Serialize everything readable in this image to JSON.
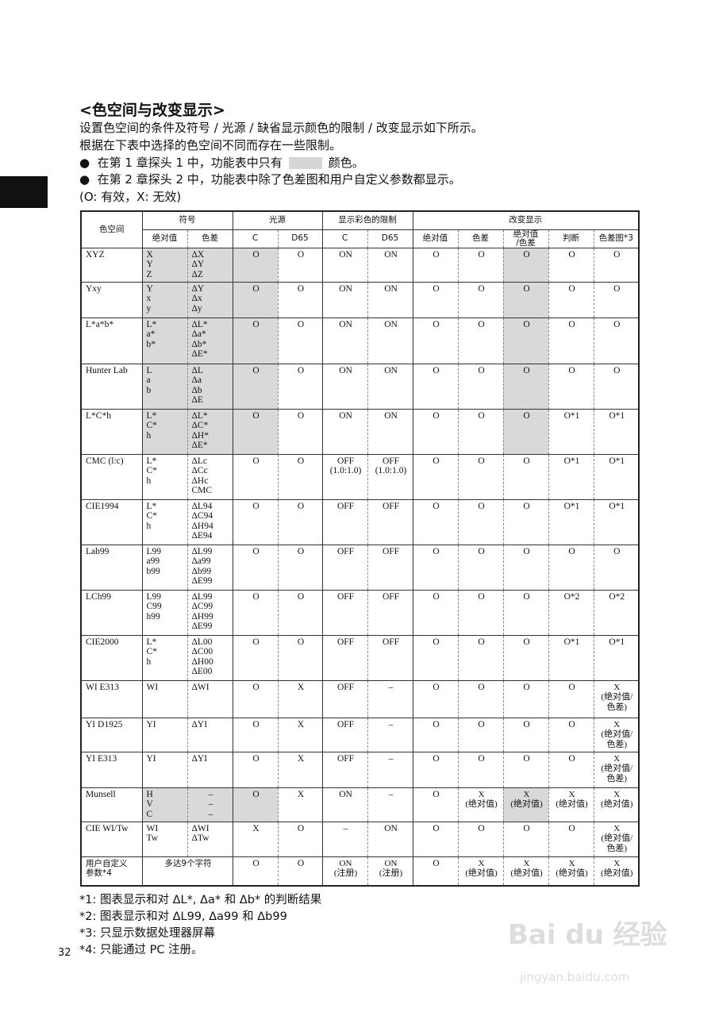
{
  "title": "<色空间与改变显示>",
  "intro": [
    "设置色空间的条件及符号 / 光源 / 缺省显示颜色的限制 / 改变显示如下所示。",
    "根据在下表中选择的色空间不同而存在一些限制。"
  ],
  "bullets": [
    {
      "before": "在第 1 章探头 1 中，功能表中只有",
      "after": "颜色。"
    },
    {
      "before": "在第 2 章探头 2 中，功能表中除了色差图和用户自定义参数都显示。",
      "after": ""
    }
  ],
  "legend_note": "(O: 有效，X: 无效)",
  "highlight_color": "#d9d9d9",
  "table": {
    "group_headers": {
      "space": "色空间",
      "symbol": "符号",
      "illuminant": "光源",
      "limit": "显示彩色的限制",
      "change": "改变显示"
    },
    "sub_headers": [
      "绝对值",
      "色差",
      "C",
      "D65",
      "C",
      "D65",
      "绝对值",
      "色差",
      "绝对值\n/色差",
      "判断",
      "色差图*3"
    ],
    "rows": [
      {
        "name": "XYZ",
        "cells": [
          "X\nY\nZ",
          "ΔX\nΔY\nΔZ",
          "O",
          "O",
          "ON",
          "ON",
          "O",
          "O",
          "O",
          "O",
          "O"
        ],
        "shade": [
          0,
          1,
          2,
          8
        ]
      },
      {
        "name": "Yxy",
        "cells": [
          "Y\nx\ny",
          "ΔY\nΔx\nΔy",
          "O",
          "O",
          "ON",
          "ON",
          "O",
          "O",
          "O",
          "O",
          "O"
        ],
        "shade": [
          0,
          1,
          2,
          8
        ]
      },
      {
        "name": "L*a*b*",
        "cells": [
          "L*\na*\nb*",
          "ΔL*\nΔa*\nΔb*\nΔE*",
          "O",
          "O",
          "ON",
          "ON",
          "O",
          "O",
          "O",
          "O",
          "O"
        ],
        "shade": [
          0,
          1,
          2,
          8
        ]
      },
      {
        "name": "Hunter Lab",
        "cells": [
          "L\na\nb",
          "ΔL\nΔa\nΔb\nΔE",
          "O",
          "O",
          "ON",
          "ON",
          "O",
          "O",
          "O",
          "O",
          "O"
        ],
        "shade": [
          0,
          1,
          2,
          8
        ]
      },
      {
        "name": "L*C*h",
        "cells": [
          "L*\nC*\nh",
          "ΔL*\nΔC*\nΔH*\nΔE*",
          "O",
          "O",
          "ON",
          "ON",
          "O",
          "O",
          "O",
          "O*1",
          "O*1"
        ],
        "shade": [
          0,
          1,
          2,
          8
        ]
      },
      {
        "name": "CMC (l:c)",
        "cells": [
          "L*\nC*\nh",
          "ΔLc\nΔCc\nΔHc\nCMC",
          "O",
          "O",
          "OFF\n(1.0:1.0)",
          "OFF\n(1.0:1.0)",
          "O",
          "O",
          "O",
          "O*1",
          "O*1"
        ],
        "shade": []
      },
      {
        "name": "CIE1994",
        "cells": [
          "L*\nC*\nh",
          "ΔL94\nΔC94\nΔH94\nΔE94",
          "O",
          "O",
          "OFF",
          "OFF",
          "O",
          "O",
          "O",
          "O*1",
          "O*1"
        ],
        "shade": []
      },
      {
        "name": "Lab99",
        "cells": [
          "L99\na99\nb99",
          "ΔL99\nΔa99\nΔb99\nΔE99",
          "O",
          "O",
          "OFF",
          "OFF",
          "O",
          "O",
          "O",
          "O",
          "O"
        ],
        "shade": []
      },
      {
        "name": "LCh99",
        "cells": [
          "L99\nC99\nh99",
          "ΔL99\nΔC99\nΔH99\nΔE99",
          "O",
          "O",
          "OFF",
          "OFF",
          "O",
          "O",
          "O",
          "O*2",
          "O*2"
        ],
        "shade": []
      },
      {
        "name": "CIE2000",
        "cells": [
          "L*\nC*\nh",
          "ΔL00\nΔC00\nΔH00\nΔE00",
          "O",
          "O",
          "OFF",
          "OFF",
          "O",
          "O",
          "O",
          "O*1",
          "O*1"
        ],
        "shade": []
      },
      {
        "name": "WI E313",
        "cells": [
          "WI",
          "ΔWI",
          "O",
          "X",
          "OFF",
          "–",
          "O",
          "O",
          "O",
          "O",
          "X\n(绝对值/\n色差)"
        ],
        "shade": []
      },
      {
        "name": "YI D1925",
        "cells": [
          "YI",
          "ΔYI",
          "O",
          "X",
          "OFF",
          "–",
          "O",
          "O",
          "O",
          "O",
          "X\n(绝对值/\n色差)"
        ],
        "shade": []
      },
      {
        "name": "YI E313",
        "cells": [
          "YI",
          "ΔYI",
          "O",
          "X",
          "OFF",
          "–",
          "O",
          "O",
          "O",
          "O",
          "X\n(绝对值/\n色差)"
        ],
        "shade": []
      },
      {
        "name": "Munsell",
        "cells": [
          "H\nV\nC",
          "–\n–\n–",
          "O",
          "X",
          "ON",
          "–",
          "O",
          "X\n(绝对值)",
          "X\n(绝对值)",
          "X\n(绝对值)",
          "X\n(绝对值)"
        ],
        "shade": [
          0,
          1,
          2,
          8
        ]
      },
      {
        "name": "CIE WI/Tw",
        "cells": [
          "WI\nTw",
          "ΔWI\nΔTw",
          "X",
          "O",
          "–",
          "ON",
          "O",
          "O",
          "O",
          "O",
          "X\n(绝对值/\n色差)"
        ],
        "shade": []
      },
      {
        "name": "用户自定义\n参数*4",
        "symbol_merged": "多达9个字符",
        "cells": [
          "O",
          "O",
          "ON\n(注册)",
          "ON\n(注册)",
          "O",
          "X\n(绝对值)",
          "X\n(绝对值)",
          "X\n(绝对值)",
          "X\n(绝对值)"
        ],
        "shade": []
      }
    ]
  },
  "footnotes": [
    "*1:  图表显示和对 ΔL*, Δa* 和 Δb* 的判断结果",
    "*2:  图表显示和对 ΔL99, Δa99 和 Δb99",
    "*3:  只显示数据处理器屏幕",
    "*4:  只能通过 PC 注册。"
  ],
  "page_number": "32",
  "watermark": {
    "logo": "Baidu 经验",
    "url": "jingyan.baidu.com"
  }
}
